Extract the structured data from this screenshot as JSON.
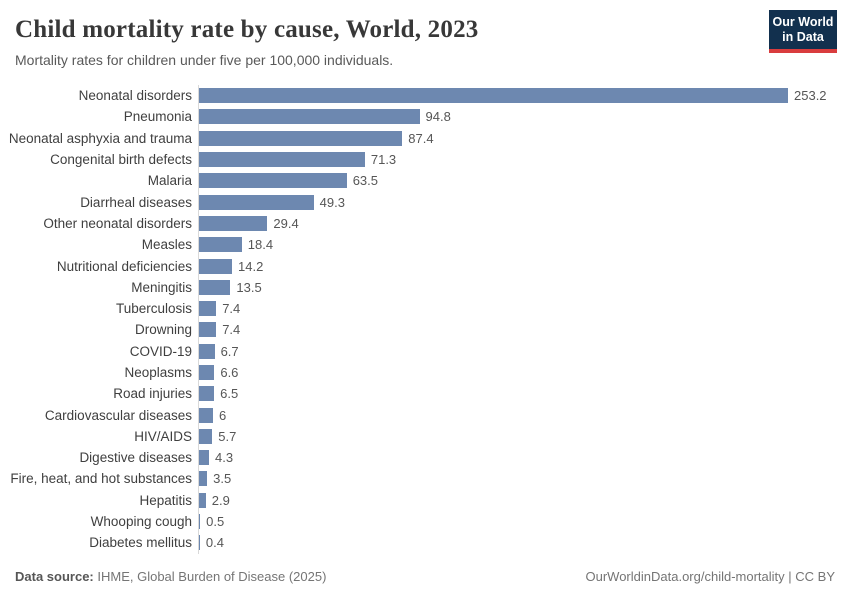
{
  "header": {
    "title": "Child mortality rate by cause, World, 2023",
    "subtitle": "Mortality rates for children under five per 100,000 individuals.",
    "logo": {
      "line1": "Our World",
      "line2": "in Data"
    }
  },
  "chart_data": {
    "type": "bar",
    "orientation": "horizontal",
    "title": "Child mortality rate by cause, World, 2023",
    "xlabel": "",
    "ylabel": "",
    "xlim": [
      0,
      253.2
    ],
    "grid": false,
    "bar_color": "#6d88b0",
    "categories": [
      "Neonatal disorders",
      "Pneumonia",
      "Neonatal asphyxia and trauma",
      "Congenital birth defects",
      "Malaria",
      "Diarrheal diseases",
      "Other neonatal disorders",
      "Measles",
      "Nutritional deficiencies",
      "Meningitis",
      "Tuberculosis",
      "Drowning",
      "COVID-19",
      "Neoplasms",
      "Road injuries",
      "Cardiovascular diseases",
      "HIV/AIDS",
      "Digestive diseases",
      "Fire, heat, and hot substances",
      "Hepatitis",
      "Whooping cough",
      "Diabetes mellitus"
    ],
    "values": [
      253.2,
      94.8,
      87.4,
      71.3,
      63.5,
      49.3,
      29.4,
      18.4,
      14.2,
      13.5,
      7.4,
      7.4,
      6.7,
      6.6,
      6.5,
      6,
      5.7,
      4.3,
      3.5,
      2.9,
      0.5,
      0.4
    ],
    "value_labels": [
      "253.2",
      "94.8",
      "87.4",
      "71.3",
      "63.5",
      "49.3",
      "29.4",
      "18.4",
      "14.2",
      "13.5",
      "7.4",
      "7.4",
      "6.7",
      "6.6",
      "6.5",
      "6",
      "5.7",
      "4.3",
      "3.5",
      "2.9",
      "0.5",
      "0.4"
    ]
  },
  "footer": {
    "datasource_label": "Data source:",
    "datasource_value": "IHME, Global Burden of Disease (2025)",
    "right": "OurWorldinData.org/child-mortality | CC BY"
  }
}
